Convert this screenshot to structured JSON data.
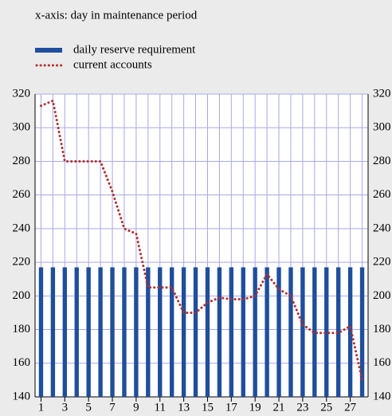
{
  "chart_data": {
    "type": "bar_line",
    "annotation": "x-axis: day in maintenance period",
    "x": [
      1,
      2,
      3,
      4,
      5,
      6,
      7,
      8,
      9,
      10,
      11,
      12,
      13,
      14,
      15,
      16,
      17,
      18,
      19,
      20,
      21,
      22,
      23,
      24,
      25,
      26,
      27,
      28
    ],
    "xlim": [
      0.5,
      28.5
    ],
    "xticks": [
      1,
      3,
      5,
      7,
      9,
      11,
      13,
      15,
      17,
      19,
      21,
      23,
      25,
      27
    ],
    "series": [
      {
        "name": "daily reserve requirement",
        "type": "bar",
        "color": "#1f4e9c",
        "values": [
          217,
          217,
          217,
          217,
          217,
          217,
          217,
          217,
          217,
          217,
          217,
          217,
          217,
          217,
          217,
          217,
          217,
          217,
          217,
          217,
          217,
          217,
          217,
          217,
          217,
          217,
          217,
          217
        ]
      },
      {
        "name": "current accounts",
        "type": "line",
        "color": "#b03030",
        "values": [
          313,
          316,
          280,
          280,
          280,
          280,
          262,
          240,
          237,
          205,
          205,
          205,
          190,
          190,
          196,
          199,
          198,
          198,
          200,
          213,
          204,
          200,
          183,
          178,
          178,
          178,
          182,
          150
        ]
      }
    ],
    "ylim": [
      140,
      320
    ],
    "yticks": [
      140,
      160,
      180,
      200,
      220,
      240,
      260,
      280,
      300,
      320
    ],
    "grid": true
  }
}
